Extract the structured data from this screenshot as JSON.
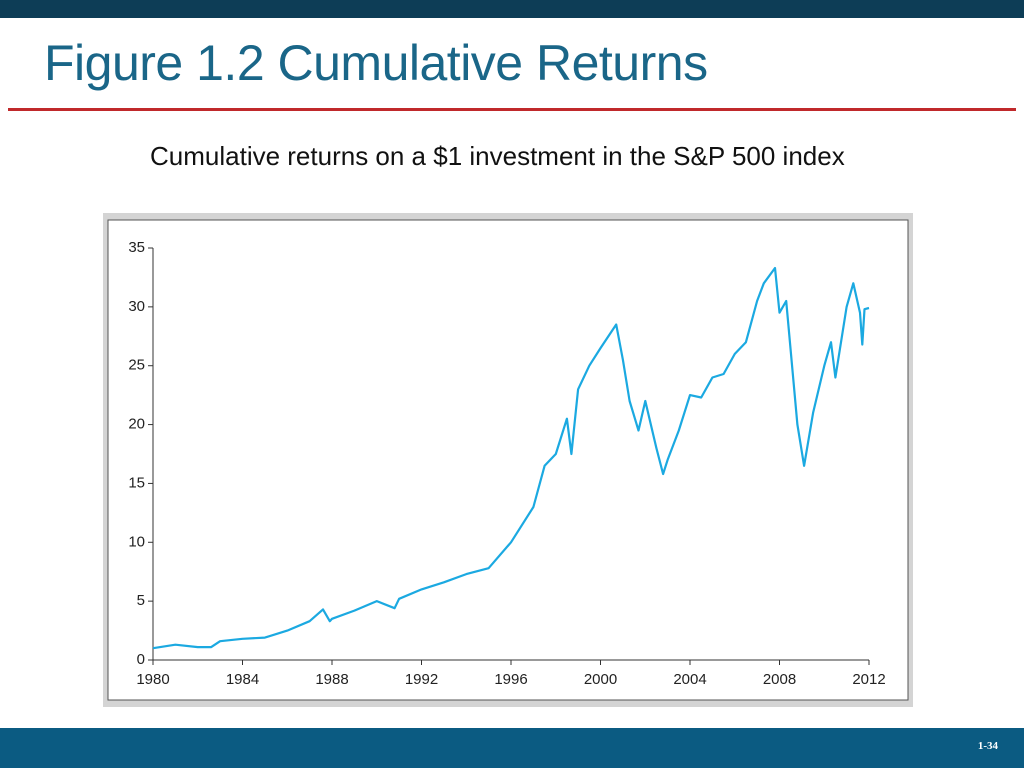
{
  "slide": {
    "title": "Figure 1.2 Cumulative Returns",
    "caption": "Cumulative returns on a $1 investment in the S&P 500 index",
    "page_number": "1-34"
  },
  "chart_data": {
    "type": "line",
    "color": "#1ba9e1",
    "x": [
      1980,
      1981,
      1982,
      1982.6,
      1983,
      1984,
      1985,
      1986,
      1987,
      1987.6,
      1987.9,
      1988,
      1989,
      1990,
      1990.8,
      1991,
      1992,
      1993,
      1994,
      1995,
      1996,
      1997,
      1997.5,
      1998,
      1998.5,
      1998.7,
      1999,
      1999.5,
      2000,
      2000.7,
      2001,
      2001.3,
      2001.7,
      2002,
      2002.5,
      2002.8,
      2003,
      2003.5,
      2004,
      2004.5,
      2005,
      2005.5,
      2006,
      2006.5,
      2007,
      2007.3,
      2007.8,
      2008,
      2008.3,
      2008.8,
      2009.1,
      2009.5,
      2010,
      2010.3,
      2010.5,
      2011,
      2011.3,
      2011.6,
      2011.7,
      2011.8,
      2012
    ],
    "values": [
      1.0,
      1.3,
      1.1,
      1.1,
      1.6,
      1.8,
      1.9,
      2.5,
      3.3,
      4.3,
      3.3,
      3.5,
      4.2,
      5.0,
      4.4,
      5.2,
      6.0,
      6.6,
      7.3,
      7.8,
      10.0,
      13.0,
      16.5,
      17.5,
      20.5,
      17.5,
      23.0,
      25.0,
      26.5,
      28.5,
      25.5,
      22.0,
      19.5,
      22.0,
      18.0,
      15.8,
      17.0,
      19.5,
      22.5,
      22.3,
      24.0,
      24.3,
      26.0,
      27.0,
      30.5,
      32.0,
      33.3,
      29.5,
      30.5,
      20.0,
      16.5,
      21.0,
      25.0,
      27.0,
      24.0,
      30.0,
      32.0,
      29.5,
      26.8,
      29.8,
      29.9
    ],
    "xlim": [
      1980,
      2012
    ],
    "xticks": [
      1980,
      1984,
      1988,
      1992,
      1996,
      2000,
      2004,
      2008,
      2012
    ],
    "ylim": [
      0,
      35
    ],
    "yticks": [
      0,
      5,
      10,
      15,
      20,
      25,
      30,
      35
    ]
  }
}
